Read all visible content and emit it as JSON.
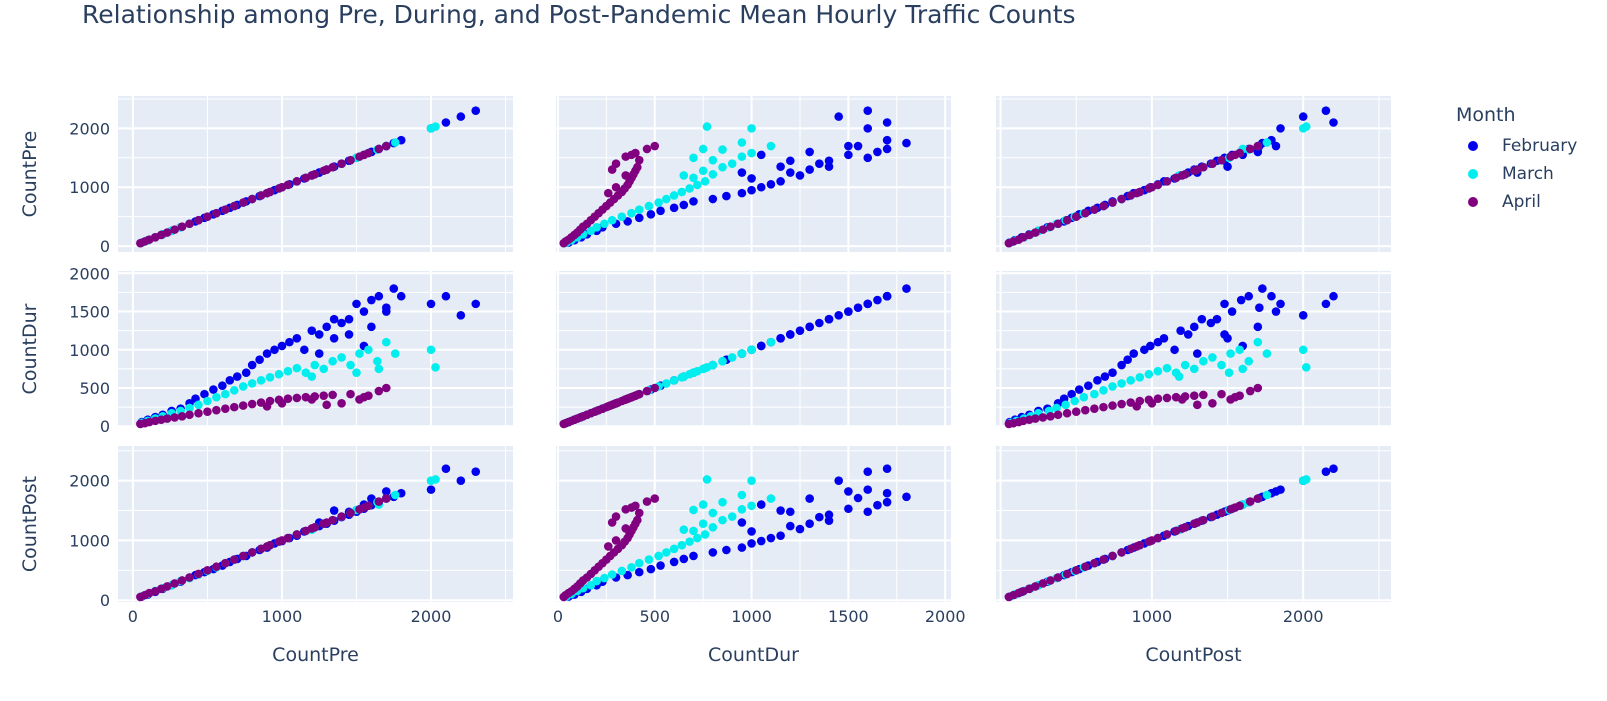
{
  "chart_data": {
    "type": "scatter",
    "title": "Relationship among Pre, During, and Post-Pandemic Mean Hourly Traffic Counts",
    "dimensions": [
      "CountPre",
      "CountDur",
      "CountPost"
    ],
    "axis_ranges": {
      "CountPre": [
        -100,
        2550
      ],
      "CountDur": [
        -10,
        2030
      ],
      "CountPost": [
        -30,
        2580
      ]
    },
    "x_ticks": {
      "CountPre": [
        0,
        1000,
        2000
      ],
      "CountDur": [
        0,
        500,
        1000,
        1500,
        2000
      ],
      "CountPost": [
        1000,
        2000
      ]
    },
    "y_ticks": {
      "CountPre": [
        0,
        1000,
        2000
      ],
      "CountDur": [
        0,
        500,
        1000,
        1500,
        2000
      ],
      "CountPost": [
        0,
        1000,
        2000
      ]
    },
    "grid": true,
    "legend": {
      "title": "Month",
      "placement": "right"
    },
    "series": [
      {
        "name": "February",
        "color": "#0000ee",
        "points": [
          {
            "pre": 60,
            "dur": 55,
            "post": 60
          },
          {
            "pre": 100,
            "dur": 85,
            "post": 95
          },
          {
            "pre": 150,
            "dur": 120,
            "post": 140
          },
          {
            "pre": 200,
            "dur": 150,
            "post": 190
          },
          {
            "pre": 260,
            "dur": 200,
            "post": 250
          },
          {
            "pre": 320,
            "dur": 230,
            "post": 310
          },
          {
            "pre": 380,
            "dur": 300,
            "post": 380
          },
          {
            "pre": 420,
            "dur": 360,
            "post": 420
          },
          {
            "pre": 480,
            "dur": 420,
            "post": 470
          },
          {
            "pre": 540,
            "dur": 480,
            "post": 520
          },
          {
            "pre": 600,
            "dur": 530,
            "post": 580
          },
          {
            "pre": 650,
            "dur": 600,
            "post": 640
          },
          {
            "pre": 700,
            "dur": 650,
            "post": 690
          },
          {
            "pre": 760,
            "dur": 700,
            "post": 740
          },
          {
            "pre": 800,
            "dur": 800,
            "post": 800
          },
          {
            "pre": 850,
            "dur": 870,
            "post": 840
          },
          {
            "pre": 900,
            "dur": 950,
            "post": 880
          },
          {
            "pre": 950,
            "dur": 1000,
            "post": 950
          },
          {
            "pre": 1000,
            "dur": 1050,
            "post": 990
          },
          {
            "pre": 1050,
            "dur": 1100,
            "post": 1040
          },
          {
            "pre": 1100,
            "dur": 1150,
            "post": 1080
          },
          {
            "pre": 1150,
            "dur": 1000,
            "post": 1150
          },
          {
            "pre": 1200,
            "dur": 1250,
            "post": 1190
          },
          {
            "pre": 1250,
            "dur": 1200,
            "post": 1240
          },
          {
            "pre": 1300,
            "dur": 1300,
            "post": 1280
          },
          {
            "pre": 1350,
            "dur": 1400,
            "post": 1330
          },
          {
            "pre": 1400,
            "dur": 1350,
            "post": 1390
          },
          {
            "pre": 1450,
            "dur": 1400,
            "post": 1430
          },
          {
            "pre": 1500,
            "dur": 1600,
            "post": 1480
          },
          {
            "pre": 1550,
            "dur": 1500,
            "post": 1530
          },
          {
            "pre": 1600,
            "dur": 1650,
            "post": 1590
          },
          {
            "pre": 1650,
            "dur": 1700,
            "post": 1640
          },
          {
            "pre": 1700,
            "dur": 1550,
            "post": 1710
          },
          {
            "pre": 1750,
            "dur": 1800,
            "post": 1730
          },
          {
            "pre": 1800,
            "dur": 1700,
            "post": 1790
          },
          {
            "pre": 2000,
            "dur": 1600,
            "post": 1850
          },
          {
            "pre": 2100,
            "dur": 1700,
            "post": 2200
          },
          {
            "pre": 2200,
            "dur": 1450,
            "post": 2000
          },
          {
            "pre": 2300,
            "dur": 1600,
            "post": 2150
          },
          {
            "pre": 1450,
            "dur": 1200,
            "post": 1480
          },
          {
            "pre": 1550,
            "dur": 1050,
            "post": 1600
          },
          {
            "pre": 1350,
            "dur": 1150,
            "post": 1500
          },
          {
            "pre": 1600,
            "dur": 1300,
            "post": 1700
          },
          {
            "pre": 1250,
            "dur": 950,
            "post": 1300
          },
          {
            "pre": 1700,
            "dur": 1500,
            "post": 1820
          }
        ]
      },
      {
        "name": "March",
        "color": "#00eeee",
        "points": [
          {
            "pre": 60,
            "dur": 45,
            "post": 65
          },
          {
            "pre": 100,
            "dur": 70,
            "post": 105
          },
          {
            "pre": 150,
            "dur": 100,
            "post": 155
          },
          {
            "pre": 200,
            "dur": 130,
            "post": 200
          },
          {
            "pre": 260,
            "dur": 170,
            "post": 250
          },
          {
            "pre": 320,
            "dur": 200,
            "post": 320
          },
          {
            "pre": 380,
            "dur": 240,
            "post": 370
          },
          {
            "pre": 440,
            "dur": 280,
            "post": 430
          },
          {
            "pre": 500,
            "dur": 330,
            "post": 490
          },
          {
            "pre": 560,
            "dur": 380,
            "post": 550
          },
          {
            "pre": 620,
            "dur": 420,
            "post": 620
          },
          {
            "pre": 680,
            "dur": 470,
            "post": 680
          },
          {
            "pre": 740,
            "dur": 520,
            "post": 740
          },
          {
            "pre": 800,
            "dur": 560,
            "post": 800
          },
          {
            "pre": 860,
            "dur": 600,
            "post": 860
          },
          {
            "pre": 920,
            "dur": 640,
            "post": 920
          },
          {
            "pre": 980,
            "dur": 680,
            "post": 980
          },
          {
            "pre": 1040,
            "dur": 720,
            "post": 1040
          },
          {
            "pre": 1100,
            "dur": 760,
            "post": 1100
          },
          {
            "pre": 1160,
            "dur": 700,
            "post": 1160
          },
          {
            "pre": 1220,
            "dur": 800,
            "post": 1220
          },
          {
            "pre": 1280,
            "dur": 750,
            "post": 1280
          },
          {
            "pre": 1340,
            "dur": 850,
            "post": 1340
          },
          {
            "pre": 1400,
            "dur": 900,
            "post": 1400
          },
          {
            "pre": 1460,
            "dur": 800,
            "post": 1460
          },
          {
            "pre": 1520,
            "dur": 950,
            "post": 1520
          },
          {
            "pre": 1580,
            "dur": 1000,
            "post": 1580
          },
          {
            "pre": 1640,
            "dur": 850,
            "post": 1640
          },
          {
            "pre": 1700,
            "dur": 1100,
            "post": 1700
          },
          {
            "pre": 1760,
            "dur": 950,
            "post": 1760
          },
          {
            "pre": 2000,
            "dur": 1000,
            "post": 2000
          },
          {
            "pre": 2030,
            "dur": 770,
            "post": 2020
          },
          {
            "pre": 1200,
            "dur": 650,
            "post": 1180
          },
          {
            "pre": 1500,
            "dur": 700,
            "post": 1510
          },
          {
            "pre": 1650,
            "dur": 750,
            "post": 1600
          }
        ]
      },
      {
        "name": "April",
        "color": "#800080",
        "points": [
          {
            "pre": 50,
            "dur": 30,
            "post": 55
          },
          {
            "pre": 80,
            "dur": 40,
            "post": 85
          },
          {
            "pre": 110,
            "dur": 55,
            "post": 120
          },
          {
            "pre": 150,
            "dur": 70,
            "post": 150
          },
          {
            "pre": 190,
            "dur": 85,
            "post": 190
          },
          {
            "pre": 230,
            "dur": 100,
            "post": 230
          },
          {
            "pre": 280,
            "dur": 115,
            "post": 280
          },
          {
            "pre": 330,
            "dur": 130,
            "post": 330
          },
          {
            "pre": 380,
            "dur": 150,
            "post": 380
          },
          {
            "pre": 440,
            "dur": 170,
            "post": 440
          },
          {
            "pre": 500,
            "dur": 190,
            "post": 500
          },
          {
            "pre": 560,
            "dur": 210,
            "post": 560
          },
          {
            "pre": 620,
            "dur": 230,
            "post": 620
          },
          {
            "pre": 680,
            "dur": 250,
            "post": 680
          },
          {
            "pre": 740,
            "dur": 270,
            "post": 740
          },
          {
            "pre": 800,
            "dur": 290,
            "post": 800
          },
          {
            "pre": 860,
            "dur": 310,
            "post": 860
          },
          {
            "pre": 920,
            "dur": 330,
            "post": 920
          },
          {
            "pre": 980,
            "dur": 345,
            "post": 980
          },
          {
            "pre": 1040,
            "dur": 360,
            "post": 1040
          },
          {
            "pre": 1100,
            "dur": 370,
            "post": 1100
          },
          {
            "pre": 1160,
            "dur": 380,
            "post": 1160
          },
          {
            "pre": 1220,
            "dur": 390,
            "post": 1220
          },
          {
            "pre": 1280,
            "dur": 400,
            "post": 1280
          },
          {
            "pre": 1340,
            "dur": 410,
            "post": 1340
          },
          {
            "pre": 1400,
            "dur": 300,
            "post": 1400
          },
          {
            "pre": 1460,
            "dur": 420,
            "post": 1460
          },
          {
            "pre": 1520,
            "dur": 350,
            "post": 1520
          },
          {
            "pre": 1580,
            "dur": 400,
            "post": 1580
          },
          {
            "pre": 1650,
            "dur": 460,
            "post": 1650
          },
          {
            "pre": 1700,
            "dur": 500,
            "post": 1700
          },
          {
            "pre": 1300,
            "dur": 280,
            "post": 1300
          },
          {
            "pre": 1000,
            "dur": 300,
            "post": 1000
          },
          {
            "pre": 1200,
            "dur": 350,
            "post": 1200
          },
          {
            "pre": 1550,
            "dur": 380,
            "post": 1550
          },
          {
            "pre": 900,
            "dur": 260,
            "post": 900
          }
        ]
      }
    ]
  }
}
